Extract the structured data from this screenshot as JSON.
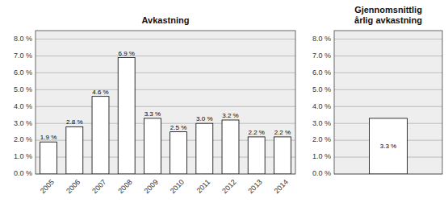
{
  "chart_data": [
    {
      "type": "bar",
      "title": "Avkastning",
      "categories": [
        "2005",
        "2006",
        "2007",
        "2008",
        "2009",
        "2010",
        "2011",
        "2012",
        "2013",
        "2014"
      ],
      "values": [
        1.9,
        2.8,
        4.6,
        6.9,
        3.3,
        2.5,
        3.0,
        3.2,
        2.2,
        2.2
      ],
      "value_labels": [
        "1.9 %",
        "2.8 %",
        "4.6 %",
        "6.9 %",
        "3.3 %",
        "2.5 %",
        "3.0 %",
        "3.2 %",
        "2.2 %",
        "2.2 %"
      ],
      "data_labels": true,
      "color": "#ffffff",
      "ylim": [
        0,
        8.5
      ],
      "yticks": [
        {
          "value": 0.0,
          "label": "0.0 %"
        },
        {
          "value": 1.0,
          "label": "1.0 %"
        },
        {
          "value": 2.0,
          "label": "2.0 %"
        },
        {
          "value": 3.0,
          "label": "3.0 %"
        },
        {
          "value": 4.0,
          "label": "4.0 %"
        },
        {
          "value": 5.0,
          "label": "5.0 %"
        },
        {
          "value": 6.0,
          "label": "6.0 %"
        },
        {
          "value": 7.0,
          "label": "7.0 %"
        },
        {
          "value": 8.0,
          "label": "8.0 %"
        }
      ],
      "grid": true
    },
    {
      "type": "bar",
      "title": "Gjennomsnittlig\nårlig avkastning",
      "categories": [
        null
      ],
      "values": [
        3.3
      ],
      "value_labels": [
        "3.3 %"
      ],
      "data_labels": true,
      "color": "#ffffff",
      "ylim": [
        0,
        8.5
      ],
      "yticks": [
        {
          "value": 0.0,
          "label": "0.0 %"
        },
        {
          "value": 1.0,
          "label": "1.0 %"
        },
        {
          "value": 2.0,
          "label": "2.0 %"
        },
        {
          "value": 3.0,
          "label": "3.0 %"
        },
        {
          "value": 4.0,
          "label": "4.0 %"
        },
        {
          "value": 5.0,
          "label": "5.0 %"
        },
        {
          "value": 6.0,
          "label": "6.0 %"
        },
        {
          "value": 7.0,
          "label": "7.0 %"
        },
        {
          "value": 8.0,
          "label": "8.0 %"
        }
      ],
      "grid": true,
      "tick_labels": "y"
    }
  ]
}
